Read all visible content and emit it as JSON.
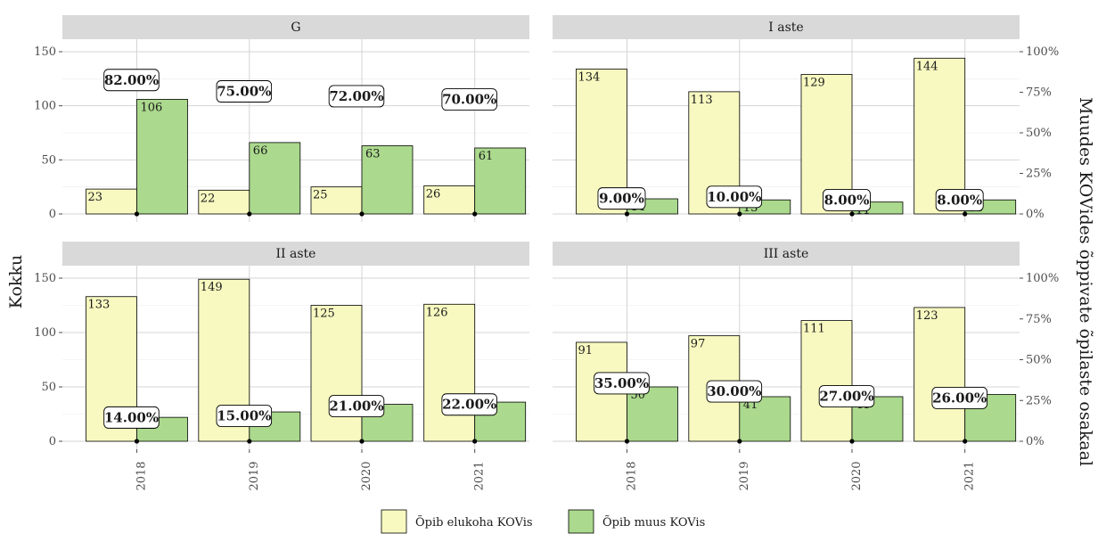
{
  "chart_data": {
    "type": "bar",
    "ylabel": "Kokku",
    "y2label": "Muudes KOVides õppivate õpilaste osakaal",
    "ylim": [
      0,
      150
    ],
    "yticks": [
      0,
      50,
      100,
      150
    ],
    "y2lim": [
      0,
      1
    ],
    "y2ticks": [
      "0%",
      "25%",
      "50%",
      "75%",
      "100%"
    ],
    "categories": [
      "2018",
      "2019",
      "2020",
      "2021"
    ],
    "legend_position": "bottom",
    "grid": true,
    "series_meta": [
      {
        "name": "Õpib elukoha KOVis",
        "color": "#f7f9c0"
      },
      {
        "name": "Õpib muus KOVis",
        "color": "#abd98d"
      }
    ],
    "panels": [
      {
        "title": "G",
        "elukoha": [
          23,
          22,
          25,
          26
        ],
        "muus": [
          106,
          66,
          63,
          61
        ],
        "share_labels": [
          "82.00%",
          "75.00%",
          "72.00%",
          "70.00%"
        ]
      },
      {
        "title": "I aste",
        "elukoha": [
          134,
          113,
          129,
          144
        ],
        "muus": [
          14,
          13,
          11,
          13
        ],
        "share_labels": [
          "9.00%",
          "10.00%",
          "8.00%",
          "8.00%"
        ]
      },
      {
        "title": "II aste",
        "elukoha": [
          133,
          149,
          125,
          126
        ],
        "muus": [
          22,
          27,
          34,
          36
        ],
        "share_labels": [
          "14.00%",
          "15.00%",
          "21.00%",
          "22.00%"
        ]
      },
      {
        "title": "III aste",
        "elukoha": [
          91,
          97,
          111,
          123
        ],
        "muus": [
          50,
          41,
          41,
          43
        ],
        "share_labels": [
          "35.00%",
          "30.00%",
          "27.00%",
          "26.00%"
        ]
      }
    ]
  }
}
